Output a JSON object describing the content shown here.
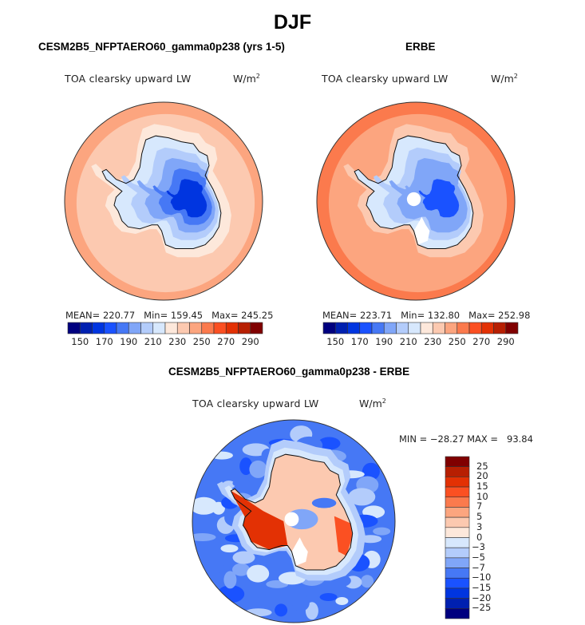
{
  "chart_data": [
    {
      "type": "heatmap",
      "projection": "south-polar-stereographic",
      "panel": "model",
      "title": "CESM2B5_NFPTAERO60_gamma0p238 (yrs 1-5)",
      "variable": "TOA clearsky upward LW",
      "units": "W/m",
      "units_exp": "2",
      "stats": {
        "mean": 220.77,
        "min": 159.45,
        "max": 245.25
      },
      "stats_text": {
        "mean": "MEAN= 220.77",
        "min": "Min= 159.45",
        "max": "Max= 245.25"
      },
      "colorbar": {
        "orientation": "horizontal",
        "levels": [
          150,
          160,
          170,
          180,
          190,
          200,
          210,
          220,
          230,
          240,
          250,
          260,
          270,
          280,
          290
        ],
        "tick_labels": [
          "150",
          "170",
          "190",
          "210",
          "230",
          "250",
          "270",
          "290"
        ],
        "colors": [
          "#00007f",
          "#0020b0",
          "#0035e0",
          "#1a52ff",
          "#4678f5",
          "#80a6f8",
          "#b3ccfb",
          "#d7e8fd",
          "#fde8db",
          "#fcc9b0",
          "#fca57f",
          "#fb7a4d",
          "#fb5022",
          "#e33104",
          "#b71f02",
          "#800000"
        ]
      },
      "regions": {
        "ocean_far": 240,
        "ocean_near": 235,
        "coast_band": 225,
        "interior": 180,
        "plateau": 160
      }
    },
    {
      "type": "heatmap",
      "projection": "south-polar-stereographic",
      "panel": "obs",
      "title": "ERBE",
      "variable": "TOA clearsky upward LW",
      "units": "W/m",
      "units_exp": "2",
      "stats": {
        "mean": 223.71,
        "min": 132.8,
        "max": 252.98
      },
      "stats_text": {
        "mean": "MEAN= 223.71",
        "min": "Min= 132.80",
        "max": "Max= 252.98"
      },
      "colorbar": {
        "orientation": "horizontal",
        "levels": [
          150,
          160,
          170,
          180,
          190,
          200,
          210,
          220,
          230,
          240,
          250,
          260,
          270,
          280,
          290
        ],
        "tick_labels": [
          "150",
          "170",
          "190",
          "210",
          "230",
          "250",
          "270",
          "290"
        ],
        "colors": [
          "#00007f",
          "#0020b0",
          "#0035e0",
          "#1a52ff",
          "#4678f5",
          "#80a6f8",
          "#b3ccfb",
          "#d7e8fd",
          "#fde8db",
          "#fcc9b0",
          "#fca57f",
          "#fb7a4d",
          "#fb5022",
          "#e33104",
          "#b71f02",
          "#800000"
        ]
      },
      "regions": {
        "ocean_far": 250,
        "ocean_near": 240,
        "coast_band": 230,
        "interior": 190,
        "plateau": 170
      },
      "missing_pole": true
    },
    {
      "type": "heatmap",
      "projection": "south-polar-stereographic",
      "panel": "difference",
      "title": "CESM2B5_NFPTAERO60_gamma0p238 - ERBE",
      "variable": "TOA clearsky upward LW",
      "units": "W/m",
      "units_exp": "2",
      "stats": {
        "min": -28.27,
        "max": 93.84
      },
      "stats_text": "MIN = −28.27 MAX =   93.84",
      "colorbar": {
        "orientation": "vertical",
        "levels": [
          -25,
          -20,
          -15,
          -10,
          -7,
          -5,
          -3,
          0,
          3,
          5,
          7,
          10,
          15,
          20,
          25
        ],
        "tick_labels": [
          "25",
          "20",
          "15",
          "10",
          "7",
          "5",
          "3",
          "0",
          "−3",
          "−5",
          "−7",
          "−10",
          "−15",
          "−20",
          "−25"
        ],
        "colors": [
          "#00007f",
          "#0020b0",
          "#0035e0",
          "#1a52ff",
          "#4678f5",
          "#80a6f8",
          "#b3ccfb",
          "#d7e8fd",
          "#fde8db",
          "#fcc9b0",
          "#fca57f",
          "#fb7a4d",
          "#fb5022",
          "#e33104",
          "#b71f02",
          "#800000"
        ]
      },
      "regions": {
        "ocean": -10,
        "ocean_near": -5,
        "coast_band": -3,
        "interior_east": 3,
        "peninsula": 15,
        "interior_center": -7
      },
      "missing_pole": true
    }
  ],
  "page": {
    "season": "DJF"
  }
}
